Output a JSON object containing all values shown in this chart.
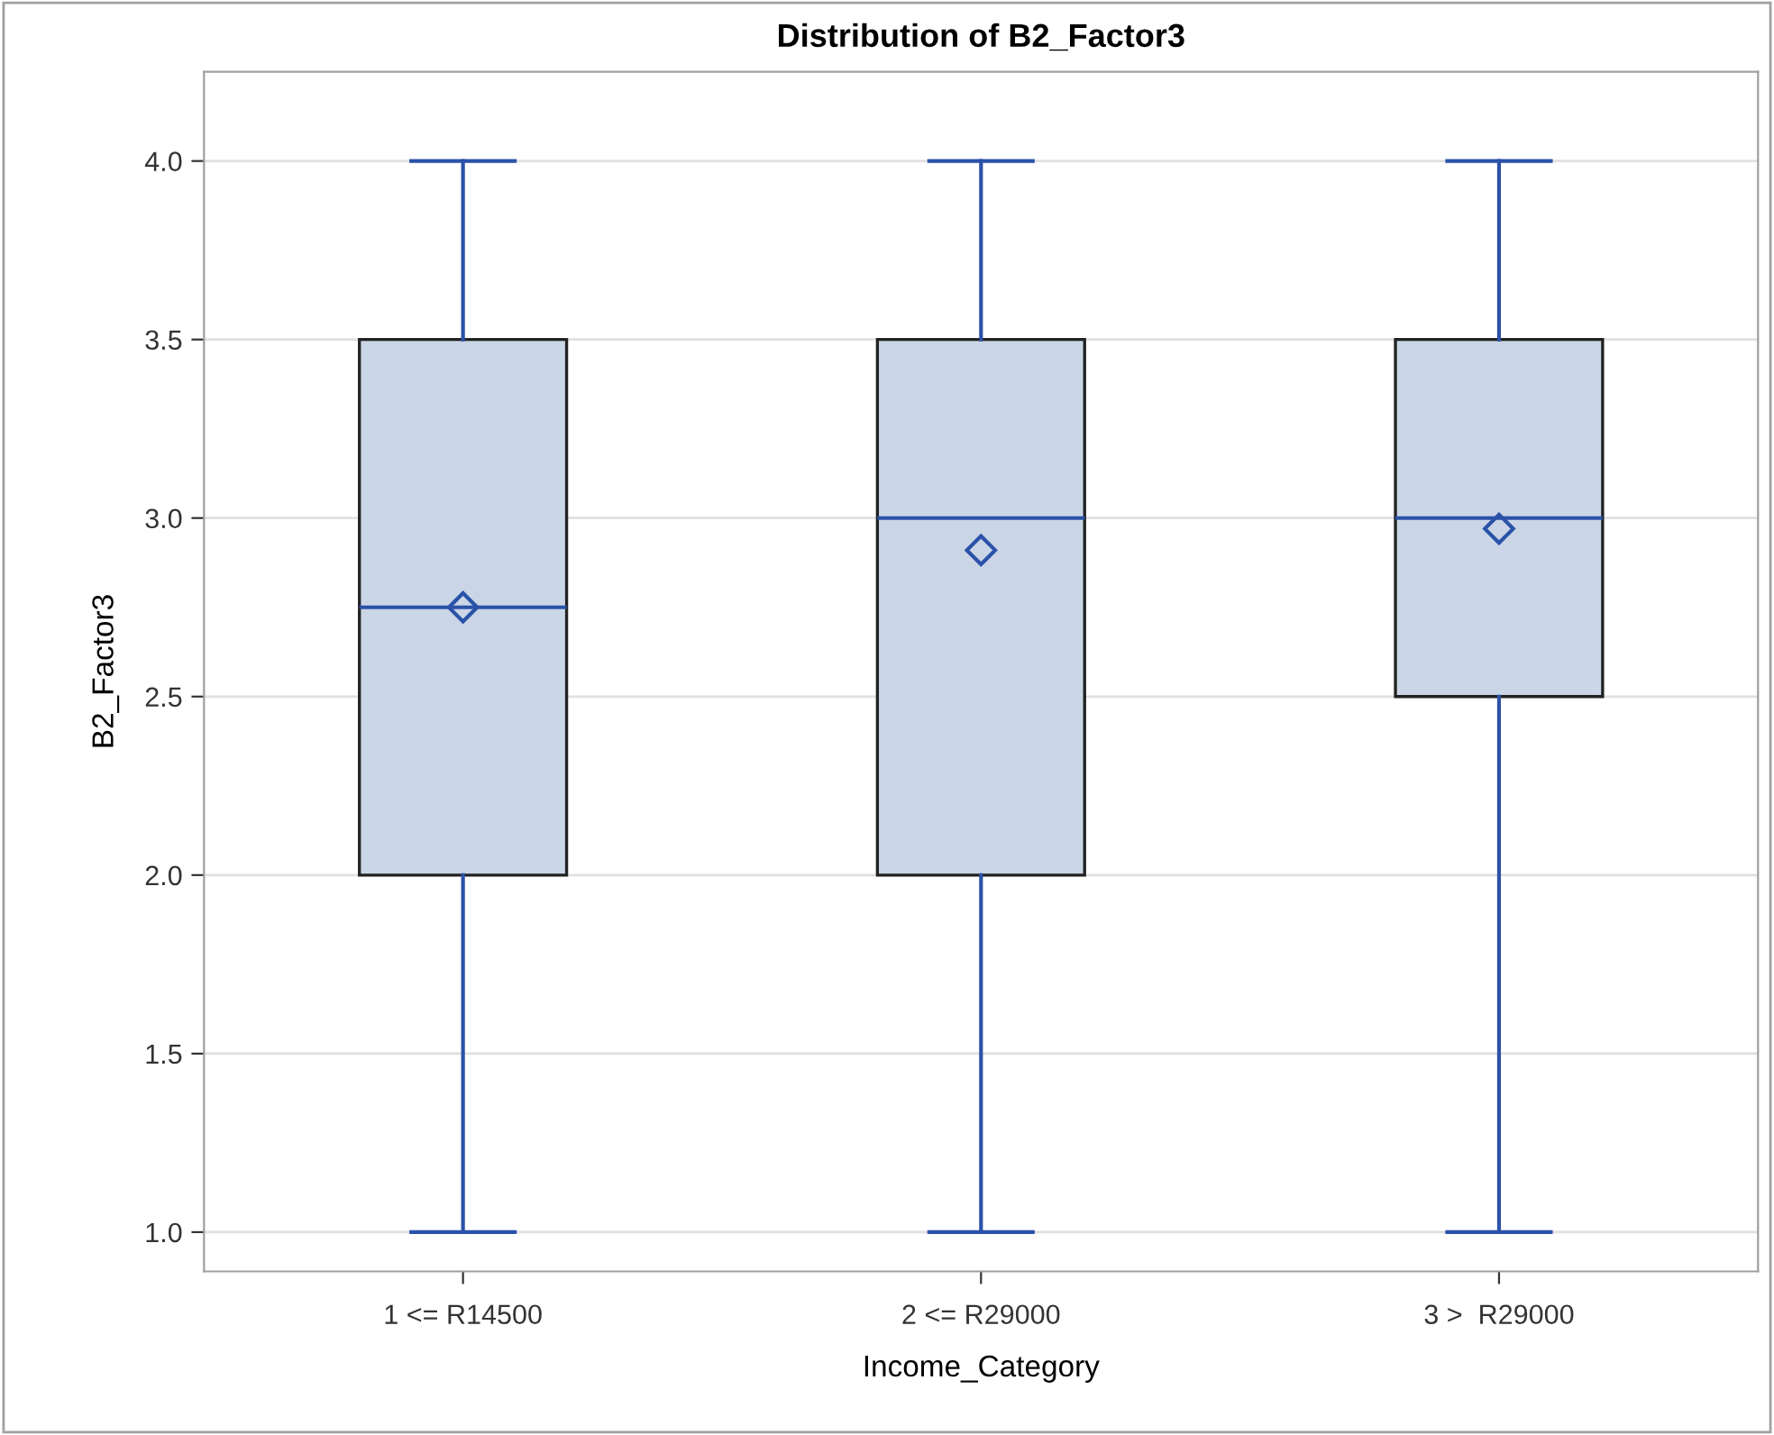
{
  "chart_data": {
    "type": "box",
    "title": "Distribution of B2_Factor3",
    "xlabel": "Income_Category",
    "ylabel": "B2_Factor3",
    "categories": [
      "1 <= R14500",
      "2 <= R29000",
      "3 >  R29000"
    ],
    "boxes": [
      {
        "low": 1.0,
        "q1": 2.0,
        "median": 2.75,
        "q3": 3.5,
        "high": 4.0,
        "mean": 2.75
      },
      {
        "low": 1.0,
        "q1": 2.0,
        "median": 3.0,
        "q3": 3.5,
        "high": 4.0,
        "mean": 2.91
      },
      {
        "low": 1.0,
        "q1": 2.5,
        "median": 3.0,
        "q3": 3.5,
        "high": 4.0,
        "mean": 2.97
      }
    ],
    "color": "#cad5e6",
    "ylim": [
      0.89,
      4.25
    ],
    "yticks": [
      {
        "value": 1.0,
        "label": "1.0"
      },
      {
        "value": 1.5,
        "label": "1.5"
      },
      {
        "value": 2.0,
        "label": "2.0"
      },
      {
        "value": 2.5,
        "label": "2.5"
      },
      {
        "value": 3.0,
        "label": "3.0"
      },
      {
        "value": 3.5,
        "label": "3.5"
      },
      {
        "value": 4.0,
        "label": "4.0"
      }
    ],
    "grid": "y",
    "marker": "diamond"
  }
}
